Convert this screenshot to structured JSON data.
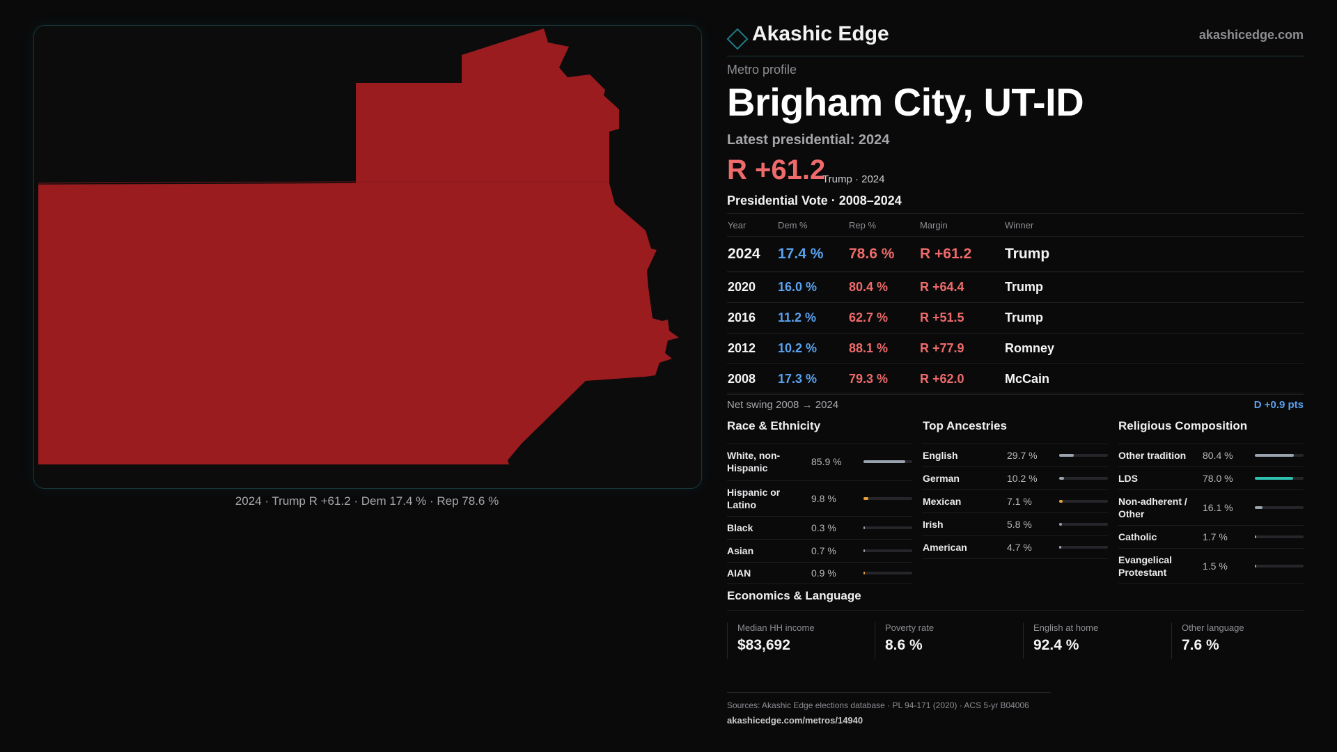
{
  "map": {
    "caption": "2024 · Trump R +61.2 · Dem 17.4 % · Rep 78.6 %",
    "fill_color": "#9b1c1f"
  },
  "brand": {
    "name": "Akashic Edge",
    "url": "akashicedge.com",
    "icon": "diamond-icon"
  },
  "profile": {
    "label": "Metro profile",
    "title": "Brigham City, UT-ID",
    "latest_label": "Latest presidential: 2024",
    "margin": "R +61.2",
    "margin_sub": "Trump · 2024"
  },
  "vote_table": {
    "heading": "Presidential Vote · 2008–2024",
    "headers": [
      "Year",
      "Dem %",
      "Rep %",
      "Margin",
      "Winner"
    ],
    "rows": [
      {
        "year": "2024",
        "dem": "17.4 %",
        "rep": "78.6 %",
        "margin": "R +61.2",
        "winner": "Trump"
      },
      {
        "year": "2020",
        "dem": "16.0 %",
        "rep": "80.4 %",
        "margin": "R +64.4",
        "winner": "Trump"
      },
      {
        "year": "2016",
        "dem": "11.2 %",
        "rep": "62.7 %",
        "margin": "R +51.5",
        "winner": "Trump"
      },
      {
        "year": "2012",
        "dem": "10.2 %",
        "rep": "88.1 %",
        "margin": "R +77.9",
        "winner": "Romney"
      },
      {
        "year": "2008",
        "dem": "17.3 %",
        "rep": "79.3 %",
        "margin": "R +62.0",
        "winner": "McCain"
      }
    ]
  },
  "swing": {
    "label": "Net swing 2008 → 2024",
    "value": "D +0.9 pts"
  },
  "race": {
    "title": "Race & Ethnicity",
    "rows": [
      {
        "label": "White, non-Hispanic",
        "value": "85.9 %",
        "share": 0.859,
        "color": "#9aa3ad"
      },
      {
        "label": "Hispanic or Latino",
        "value": "9.8 %",
        "share": 0.098,
        "color": "#e8a23a"
      },
      {
        "label": "Black",
        "value": "0.3 %",
        "share": 0.003,
        "color": "#9aa3ad"
      },
      {
        "label": "Asian",
        "value": "0.7 %",
        "share": 0.007,
        "color": "#9aa3ad"
      },
      {
        "label": "AIAN",
        "value": "0.9 %",
        "share": 0.009,
        "color": "#e8a23a"
      }
    ]
  },
  "ancestry": {
    "title": "Top Ancestries",
    "rows": [
      {
        "label": "English",
        "value": "29.7 %",
        "share": 0.297,
        "color": "#9aa3ad"
      },
      {
        "label": "German",
        "value": "10.2 %",
        "share": 0.102,
        "color": "#9aa3ad"
      },
      {
        "label": "Mexican",
        "value": "7.1 %",
        "share": 0.071,
        "color": "#e8a23a"
      },
      {
        "label": "Irish",
        "value": "5.8 %",
        "share": 0.058,
        "color": "#9aa3ad"
      },
      {
        "label": "American",
        "value": "4.7 %",
        "share": 0.047,
        "color": "#9aa3ad"
      }
    ]
  },
  "religion": {
    "title": "Religious Composition",
    "rows": [
      {
        "label": "Other tradition",
        "value": "80.4 %",
        "share": 0.804,
        "color": "#9aa3ad"
      },
      {
        "label": "LDS",
        "value": "78.0 %",
        "share": 0.78,
        "color": "#2fc0b0"
      },
      {
        "label": "Non-adherent / Other",
        "value": "16.1 %",
        "share": 0.161,
        "color": "#9aa3ad"
      },
      {
        "label": "Catholic",
        "value": "1.7 %",
        "share": 0.017,
        "color": "#e8a23a"
      },
      {
        "label": "Evangelical Protestant",
        "value": "1.5 %",
        "share": 0.015,
        "color": "#9aa3ad"
      }
    ]
  },
  "economics": {
    "title": "Economics & Language",
    "cells": [
      {
        "label": "Median HH income",
        "value": "$83,692"
      },
      {
        "label": "Poverty rate",
        "value": "8.6 %"
      },
      {
        "label": "English at home",
        "value": "92.4 %"
      },
      {
        "label": "Other language",
        "value": "7.6 %"
      }
    ]
  },
  "sources": {
    "text": "Sources: Akashic Edge elections database · PL 94-171 (2020) · ACS 5-yr B04006",
    "url": "akashicedge.com/metros/14940"
  }
}
